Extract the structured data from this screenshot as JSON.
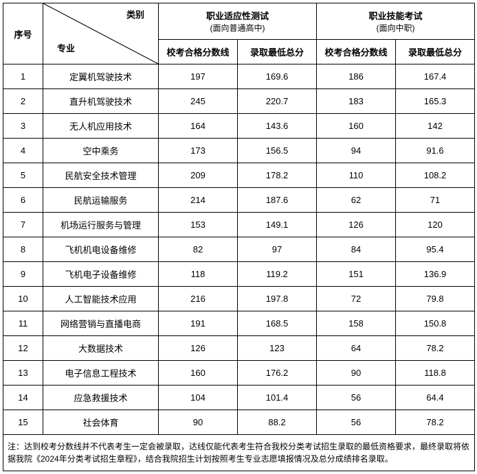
{
  "headers": {
    "seq": "序号",
    "diag_category": "类别",
    "diag_major": "专业",
    "group1_title": "职业适应性测试",
    "group1_sub": "(面向普通高中)",
    "group2_title": "职业技能考试",
    "group2_sub": "(面向中职)",
    "pass_line": "校考合格分数线",
    "min_score": "录取最低总分"
  },
  "rows": [
    {
      "seq": "1",
      "major": "定翼机驾驶技术",
      "g1_pass": "197",
      "g1_min": "169.6",
      "g2_pass": "186",
      "g2_min": "167.4"
    },
    {
      "seq": "2",
      "major": "直升机驾驶技术",
      "g1_pass": "245",
      "g1_min": "220.7",
      "g2_pass": "183",
      "g2_min": "165.3"
    },
    {
      "seq": "3",
      "major": "无人机应用技术",
      "g1_pass": "164",
      "g1_min": "143.6",
      "g2_pass": "160",
      "g2_min": "142"
    },
    {
      "seq": "4",
      "major": "空中乘务",
      "g1_pass": "173",
      "g1_min": "156.5",
      "g2_pass": "94",
      "g2_min": "91.6"
    },
    {
      "seq": "5",
      "major": "民航安全技术管理",
      "g1_pass": "209",
      "g1_min": "178.2",
      "g2_pass": "110",
      "g2_min": "108.2"
    },
    {
      "seq": "6",
      "major": "民航运输服务",
      "g1_pass": "214",
      "g1_min": "187.6",
      "g2_pass": "62",
      "g2_min": "71"
    },
    {
      "seq": "7",
      "major": "机场运行服务与管理",
      "g1_pass": "153",
      "g1_min": "149.1",
      "g2_pass": "126",
      "g2_min": "120"
    },
    {
      "seq": "8",
      "major": "飞机机电设备维修",
      "g1_pass": "82",
      "g1_min": "97",
      "g2_pass": "84",
      "g2_min": "95.4"
    },
    {
      "seq": "9",
      "major": "飞机电子设备维修",
      "g1_pass": "118",
      "g1_min": "119.2",
      "g2_pass": "151",
      "g2_min": "136.9"
    },
    {
      "seq": "10",
      "major": "人工智能技术应用",
      "g1_pass": "216",
      "g1_min": "197.8",
      "g2_pass": "72",
      "g2_min": "79.8"
    },
    {
      "seq": "11",
      "major": "网络营销与直播电商",
      "g1_pass": "191",
      "g1_min": "168.5",
      "g2_pass": "158",
      "g2_min": "150.8"
    },
    {
      "seq": "12",
      "major": "大数据技术",
      "g1_pass": "126",
      "g1_min": "123",
      "g2_pass": "64",
      "g2_min": "78.2"
    },
    {
      "seq": "13",
      "major": "电子信息工程技术",
      "g1_pass": "160",
      "g1_min": "176.2",
      "g2_pass": "90",
      "g2_min": "118.8"
    },
    {
      "seq": "14",
      "major": "应急救援技术",
      "g1_pass": "104",
      "g1_min": "101.4",
      "g2_pass": "56",
      "g2_min": "64.4"
    },
    {
      "seq": "15",
      "major": "社会体育",
      "g1_pass": "90",
      "g1_min": "88.2",
      "g2_pass": "56",
      "g2_min": "78.2"
    }
  ],
  "note": "注：达到校考分数线并不代表考生一定会被录取，达线仅能代表考生符合我校分类考试招生录取的最低资格要求，最终录取将依据我院《2024年分类考试招生章程》，结合我院招生计划按照考生专业志愿填报情况及总分成绩排名录取。"
}
